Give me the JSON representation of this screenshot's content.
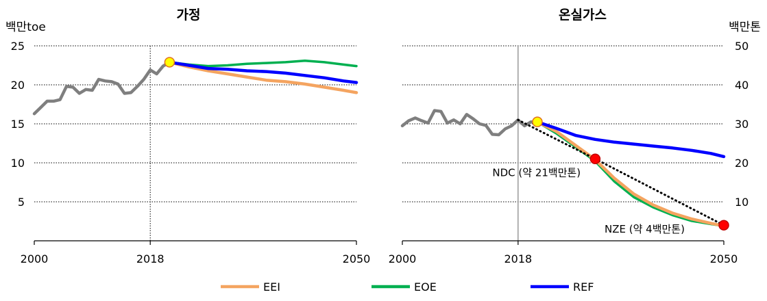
{
  "chart_data": [
    {
      "type": "line",
      "title": "가정",
      "ylabel": "백만toe",
      "xlim": [
        2000,
        2050
      ],
      "ylim": [
        0,
        25
      ],
      "yticks": [
        5,
        10,
        15,
        20,
        25
      ],
      "xticks": [
        2000,
        2018,
        2050
      ],
      "grid": true,
      "reference_year": 2018,
      "series": [
        {
          "name": "history",
          "color": "#7f7f7f",
          "x": [
            2000,
            2001,
            2002,
            2003,
            2004,
            2005,
            2006,
            2007,
            2008,
            2009,
            2010,
            2011,
            2012,
            2013,
            2014,
            2015,
            2016,
            2017,
            2018,
            2019,
            2020,
            2021
          ],
          "y": [
            16.3,
            17.1,
            17.9,
            17.9,
            18.1,
            19.8,
            19.7,
            18.9,
            19.4,
            19.3,
            20.7,
            20.5,
            20.4,
            20.1,
            18.9,
            19.0,
            19.8,
            20.7,
            21.9,
            21.4,
            22.4,
            22.9
          ]
        },
        {
          "name": "EEI",
          "color": "#f4a460",
          "x": [
            2021,
            2024,
            2027,
            2030,
            2033,
            2036,
            2039,
            2042,
            2045,
            2048,
            2050
          ],
          "y": [
            22.9,
            22.3,
            21.8,
            21.4,
            21.0,
            20.6,
            20.4,
            20.1,
            19.7,
            19.3,
            19.0
          ]
        },
        {
          "name": "EOE",
          "color": "#00b050",
          "x": [
            2021,
            2024,
            2027,
            2030,
            2033,
            2036,
            2039,
            2042,
            2045,
            2048,
            2050
          ],
          "y": [
            22.9,
            22.6,
            22.4,
            22.5,
            22.7,
            22.8,
            22.9,
            23.1,
            22.9,
            22.6,
            22.4
          ]
        },
        {
          "name": "REF",
          "color": "#0000ff",
          "x": [
            2021,
            2024,
            2027,
            2030,
            2033,
            2036,
            2039,
            2042,
            2045,
            2048,
            2050
          ],
          "y": [
            22.9,
            22.5,
            22.1,
            22.0,
            21.8,
            21.7,
            21.5,
            21.2,
            20.9,
            20.5,
            20.3
          ]
        }
      ],
      "markers": [
        {
          "x": 2021,
          "y": 22.9,
          "color": "#ffff00"
        }
      ]
    },
    {
      "type": "line",
      "title": "온실가스",
      "ylabel": "백만톤",
      "xlim": [
        2000,
        2050
      ],
      "ylim": [
        0,
        50
      ],
      "yticks": [
        10,
        20,
        30,
        40,
        50
      ],
      "xticks": [
        2000,
        2018,
        2050
      ],
      "grid": true,
      "axis_side": "right",
      "reference_year": 2018,
      "series": [
        {
          "name": "history",
          "color": "#7f7f7f",
          "x": [
            2000,
            2001,
            2002,
            2003,
            2004,
            2005,
            2006,
            2007,
            2008,
            2009,
            2010,
            2011,
            2012,
            2013,
            2014,
            2015,
            2016,
            2017,
            2018,
            2019,
            2020,
            2021
          ],
          "y": [
            29.5,
            30.8,
            31.5,
            30.8,
            30.2,
            33.4,
            33.2,
            30.2,
            31.0,
            30.0,
            32.4,
            31.3,
            30.0,
            29.6,
            27.3,
            27.2,
            28.7,
            29.5,
            31.0,
            29.5,
            30.5,
            30.5
          ]
        },
        {
          "name": "EEI",
          "color": "#f4a460",
          "x": [
            2021,
            2024,
            2027,
            2030,
            2033,
            2036,
            2039,
            2042,
            2045,
            2048,
            2050
          ],
          "y": [
            30.5,
            28.0,
            24.4,
            20.8,
            16.0,
            12.0,
            9.2,
            7.1,
            5.6,
            4.5,
            3.8
          ]
        },
        {
          "name": "EOE",
          "color": "#00b050",
          "x": [
            2021,
            2024,
            2027,
            2030,
            2033,
            2036,
            2039,
            2042,
            2045,
            2048,
            2050
          ],
          "y": [
            30.5,
            27.5,
            24.0,
            20.4,
            15.2,
            11.2,
            8.6,
            6.6,
            5.1,
            4.3,
            3.8
          ]
        },
        {
          "name": "REF",
          "color": "#0000ff",
          "x": [
            2021,
            2024,
            2027,
            2030,
            2033,
            2036,
            2039,
            2042,
            2045,
            2048,
            2050
          ],
          "y": [
            30.5,
            28.8,
            27.0,
            26.0,
            25.3,
            24.8,
            24.3,
            23.8,
            23.2,
            22.4,
            21.6
          ]
        },
        {
          "name": "target",
          "color": "#000000",
          "dashed": true,
          "x": [
            2018,
            2030,
            2050
          ],
          "y": [
            31.0,
            21.0,
            4.0
          ]
        }
      ],
      "markers": [
        {
          "x": 2021,
          "y": 30.5,
          "color": "#ffff00"
        },
        {
          "x": 2030,
          "y": 21.0,
          "color": "#ff0000"
        },
        {
          "x": 2050,
          "y": 4.0,
          "color": "#ff0000"
        }
      ],
      "annotations": [
        {
          "text": "NDC (약 21백만톤)",
          "x": 2030,
          "y": 21.0,
          "anchor": "left-below"
        },
        {
          "text": "NZE (약 4백만톤)",
          "x": 2050,
          "y": 4.0,
          "anchor": "left"
        }
      ]
    }
  ],
  "legend": {
    "placement": "bottom",
    "items": [
      {
        "label": "EEI",
        "color": "#f4a460"
      },
      {
        "label": "EOE",
        "color": "#00b050"
      },
      {
        "label": "REF",
        "color": "#0000ff"
      }
    ]
  }
}
